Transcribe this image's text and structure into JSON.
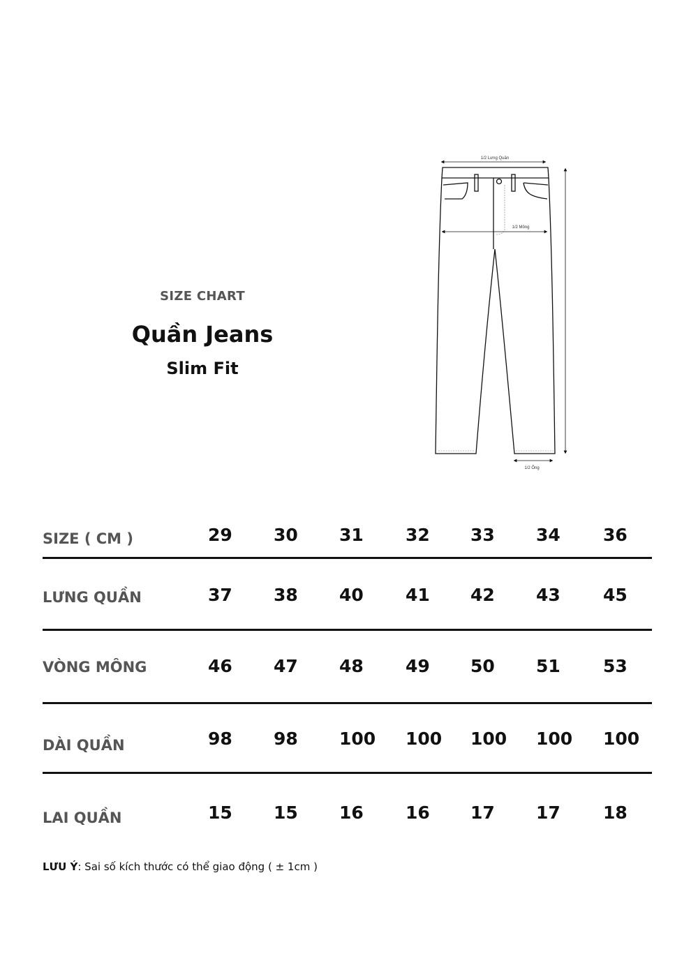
{
  "header": {
    "eyebrow": "SIZE CHART",
    "title": "Quần Jeans",
    "subtitle": "Slim Fit"
  },
  "diagram": {
    "waist_label": "1/2 Lưng Quần",
    "hip_label": "1/2 Mông",
    "hem_label": "1/2 Ống"
  },
  "table": {
    "header_label": "SIZE ( CM )",
    "sizes": [
      "29",
      "30",
      "31",
      "32",
      "33",
      "34",
      "36"
    ],
    "rows": [
      {
        "label": "LƯNG QUẦN",
        "values": [
          "37",
          "38",
          "40",
          "41",
          "42",
          "43",
          "45"
        ]
      },
      {
        "label": "VÒNG MÔNG",
        "values": [
          "46",
          "47",
          "48",
          "49",
          "50",
          "51",
          "53"
        ]
      },
      {
        "label": "DÀI QUẦN",
        "values": [
          "98",
          "98",
          "100",
          "100",
          "100",
          "100",
          "100"
        ]
      },
      {
        "label": "LAI QUẦN",
        "values": [
          "15",
          "15",
          "16",
          "16",
          "17",
          "17",
          "18"
        ]
      }
    ]
  },
  "note": {
    "label": "LƯU Ý",
    "text": ": Sai số kích thước có thể giao động ( ± 1cm )"
  }
}
